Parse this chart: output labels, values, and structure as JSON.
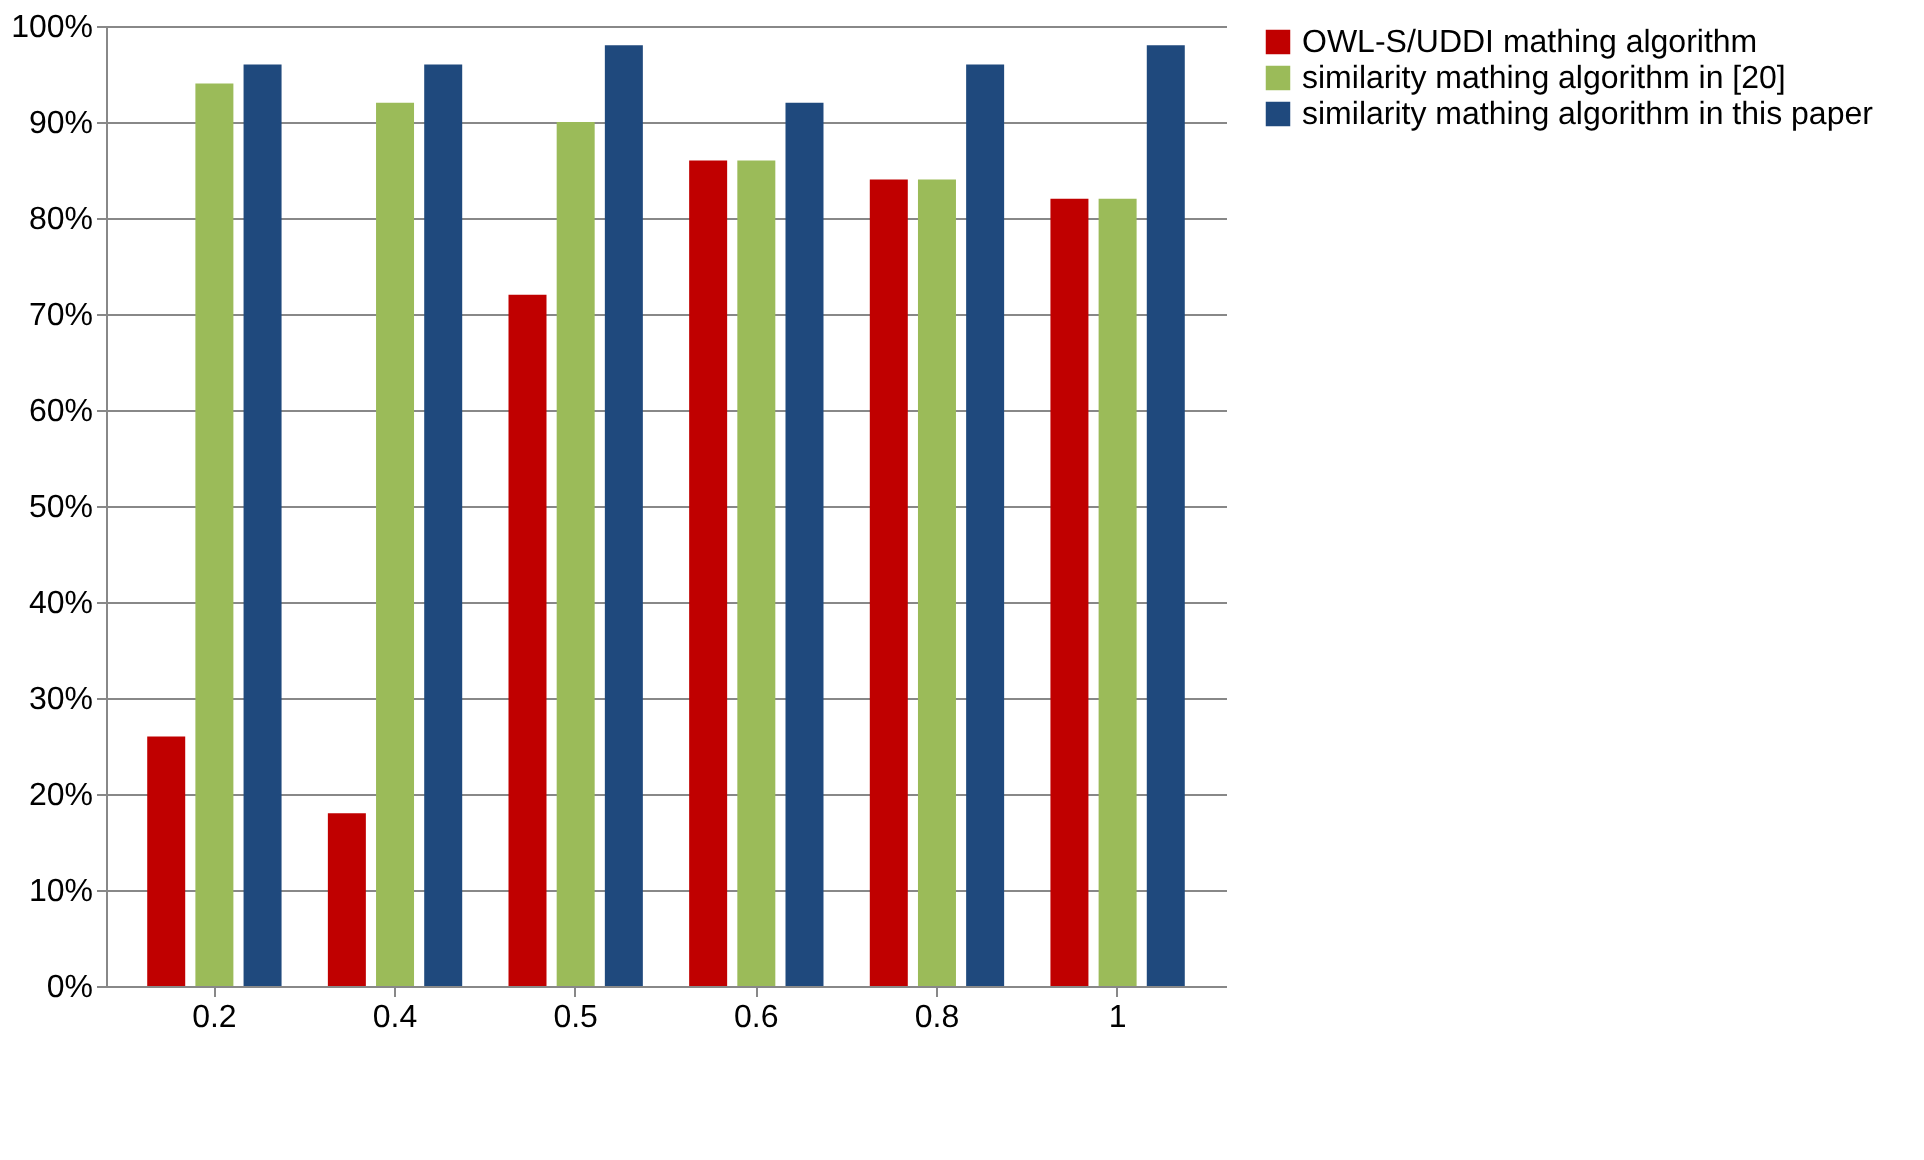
{
  "chart_data": {
    "type": "bar",
    "categories": [
      "0.2",
      "0.4",
      "0.5",
      "0.6",
      "0.8",
      "1"
    ],
    "series": [
      {
        "name": "OWL-S/UDDI mathing algorithm",
        "color": "#c00000",
        "values": [
          26,
          18,
          72,
          86,
          84,
          82
        ]
      },
      {
        "name": "similarity mathing algorithm in [20]",
        "color": "#9bbb59",
        "values": [
          94,
          92,
          90,
          86,
          84,
          82
        ]
      },
      {
        "name": "similarity mathing algorithm in this paper",
        "color": "#1f497d",
        "values": [
          96,
          96,
          98,
          92,
          96,
          98
        ]
      }
    ],
    "ylim": [
      0,
      100
    ],
    "yticks": [
      {
        "value": 0,
        "label": "0%"
      },
      {
        "value": 10,
        "label": "10%"
      },
      {
        "value": 20,
        "label": "20%"
      },
      {
        "value": 30,
        "label": "30%"
      },
      {
        "value": 40,
        "label": "40%"
      },
      {
        "value": 50,
        "label": "50%"
      },
      {
        "value": 60,
        "label": "60%"
      },
      {
        "value": 70,
        "label": "70%"
      },
      {
        "value": 80,
        "label": "80%"
      },
      {
        "value": 90,
        "label": "90%"
      },
      {
        "value": 100,
        "label": "100%"
      }
    ],
    "grid": "y",
    "legend": "right"
  }
}
